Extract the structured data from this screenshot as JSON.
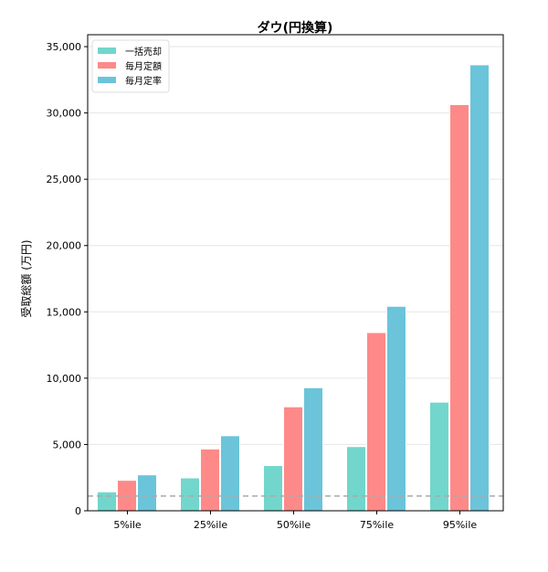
{
  "chart_data": {
    "type": "bar",
    "title": "ダウ(円換算)",
    "xlabel": "",
    "ylabel": "受取総額 (万円)",
    "categories": [
      "5%ile",
      "25%ile",
      "50%ile",
      "75%ile",
      "95%ile"
    ],
    "series": [
      {
        "name": "一括売却",
        "color": "#72d6cc",
        "values": [
          1430,
          2480,
          3410,
          4840,
          8190
        ]
      },
      {
        "name": "毎月定額",
        "color": "#fd8a88",
        "values": [
          2300,
          4660,
          7840,
          13440,
          30630
        ]
      },
      {
        "name": "毎月定率",
        "color": "#6bc4d9",
        "values": [
          2710,
          5660,
          9280,
          15420,
          33630
        ]
      }
    ],
    "ylim": [
      0,
      35900
    ],
    "yticks": [
      0,
      5000,
      10000,
      15000,
      20000,
      25000,
      30000,
      35000
    ],
    "ytick_labels": [
      "0",
      "5,000",
      "10,000",
      "15,000",
      "20,000",
      "25,000",
      "30,000",
      "35,000"
    ],
    "reference_line": {
      "value": 1110,
      "style": "dashed",
      "color": "#aaaaaa"
    },
    "grid": "y",
    "legend": "top-left"
  }
}
